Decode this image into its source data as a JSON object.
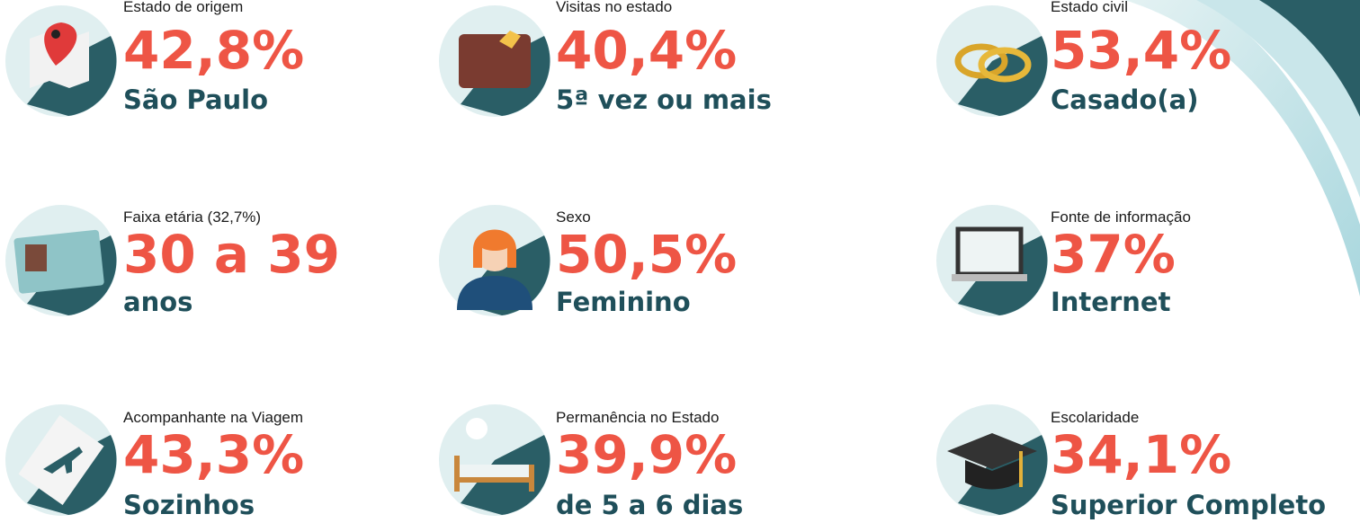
{
  "items": [
    {
      "label": "Estado de origem",
      "value": "42,8%",
      "description": "São Paulo"
    },
    {
      "label": "Visitas no estado",
      "value": "40,4%",
      "description": "5ª vez ou mais"
    },
    {
      "label": "Estado civil",
      "value": "53,4%",
      "description": "Casado(a)"
    },
    {
      "label": "Faixa etária (32,7%)",
      "value": "30 a 39",
      "description": "anos"
    },
    {
      "label": "Sexo",
      "value": "50,5%",
      "description": "Feminino"
    },
    {
      "label": "Fonte de informação",
      "value": "37%",
      "description": "Internet"
    },
    {
      "label": "Acompanhante na Viagem",
      "value": "43,3%",
      "description": "Sozinhos"
    },
    {
      "label": "Permanência no Estado",
      "value": "39,9%",
      "description": "de 5 a 6 dias"
    },
    {
      "label": "Escolaridade",
      "value": "34,1%",
      "description": "Superior Completo"
    }
  ]
}
